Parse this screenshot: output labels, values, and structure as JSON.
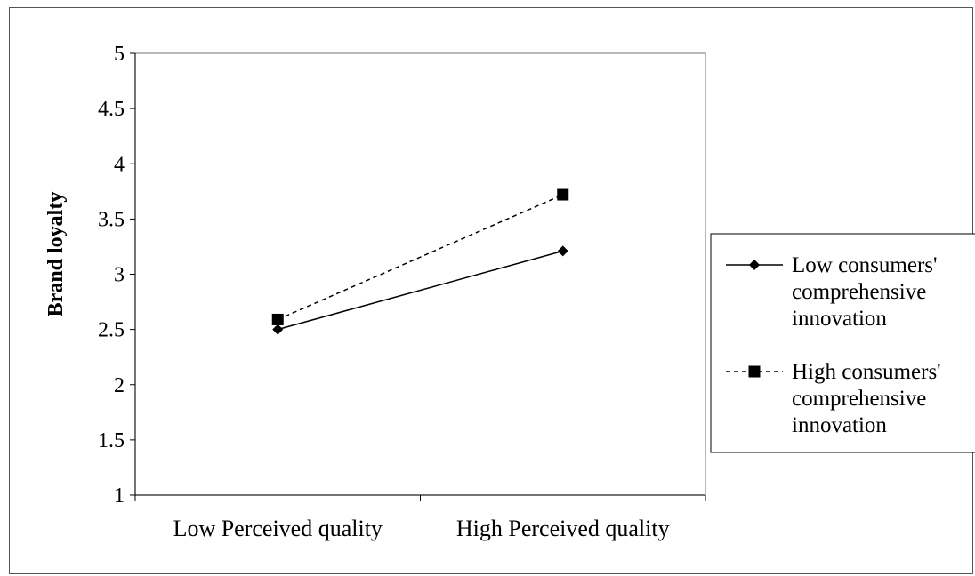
{
  "chart_data": {
    "type": "line",
    "title": "",
    "xlabel": "",
    "ylabel": "Brand loyalty",
    "categories": [
      "Low Perceived quality",
      "High Perceived quality"
    ],
    "ylim": [
      1,
      5
    ],
    "yticks": [
      "1",
      "1.5",
      "2",
      "2.5",
      "3",
      "3.5",
      "4",
      "4.5",
      "5"
    ],
    "grid": false,
    "legend_position": "right",
    "series": [
      {
        "name": "Low consumers' comprehensive innovation",
        "name_lines": [
          "Low consumers'",
          "comprehensive",
          "innovation"
        ],
        "values": [
          2.5,
          3.21
        ],
        "line_style": "solid",
        "marker": "diamond",
        "color": "#000000"
      },
      {
        "name": "High consumers' comprehensive innovation",
        "name_lines": [
          "High consumers'",
          "comprehensive",
          "innovation"
        ],
        "values": [
          2.59,
          3.72
        ],
        "line_style": "dashed",
        "marker": "square",
        "color": "#000000"
      }
    ]
  }
}
